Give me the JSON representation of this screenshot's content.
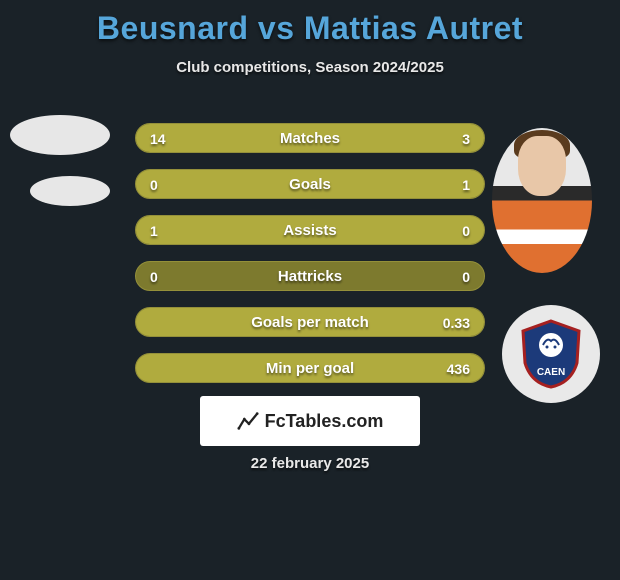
{
  "header": {
    "title": "Beusnard vs Mattias Autret",
    "subtitle": "Club competitions, Season 2024/2025",
    "title_color": "#56a6da"
  },
  "players": {
    "left": {
      "name": "Beusnard"
    },
    "right": {
      "name": "Mattias Autret",
      "club_name": "CAEN"
    }
  },
  "stats": {
    "rows": [
      {
        "label": "Matches",
        "left": "14",
        "right": "3",
        "left_pct": 82,
        "right_pct": 18
      },
      {
        "label": "Goals",
        "left": "0",
        "right": "1",
        "left_pct": 0,
        "right_pct": 100
      },
      {
        "label": "Assists",
        "left": "1",
        "right": "0",
        "left_pct": 100,
        "right_pct": 0
      },
      {
        "label": "Hattricks",
        "left": "0",
        "right": "0",
        "left_pct": 0,
        "right_pct": 0
      },
      {
        "label": "Goals per match",
        "left": "",
        "right": "0.33",
        "left_pct": 0,
        "right_pct": 100
      },
      {
        "label": "Min per goal",
        "left": "",
        "right": "436",
        "left_pct": 0,
        "right_pct": 100
      }
    ],
    "bar_bg": "#7d7a2e",
    "bar_fill": "#b0ab3e",
    "text_color": "#ffffff"
  },
  "footer": {
    "branding": "FcTables.com",
    "date": "22 february 2025"
  },
  "style": {
    "background": "#1a2228"
  }
}
